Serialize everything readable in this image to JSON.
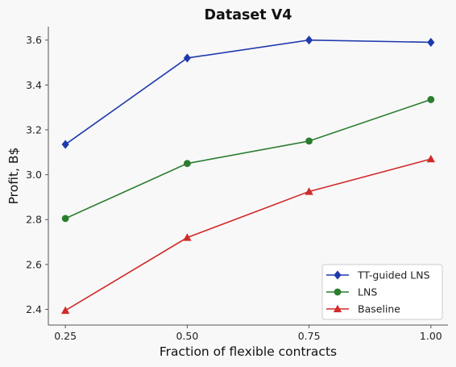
{
  "chart_data": {
    "type": "line",
    "title": "Dataset V4",
    "xlabel": "Fraction of flexible contracts",
    "ylabel": "Profit, B$",
    "x": [
      0.25,
      0.5,
      0.75,
      1.0
    ],
    "xticks": [
      "0.25",
      "0.50",
      "0.75",
      "1.00"
    ],
    "yticks": [
      "2.4",
      "2.6",
      "2.8",
      "3.0",
      "3.2",
      "3.4",
      "3.6"
    ],
    "xlim": [
      0.215,
      1.035
    ],
    "ylim": [
      2.33,
      3.66
    ],
    "grid": false,
    "legend_position": "bottom-right",
    "series": [
      {
        "name": "TT-guided LNS",
        "color": "#1f3aad",
        "marker": "diamond",
        "values": [
          3.135,
          3.52,
          3.6,
          3.59
        ]
      },
      {
        "name": "LNS",
        "color": "#2a7d2e",
        "marker": "circle",
        "values": [
          2.805,
          3.05,
          3.15,
          3.335
        ]
      },
      {
        "name": "Baseline",
        "color": "#d22a2a",
        "marker": "triangle",
        "values": [
          2.395,
          2.72,
          2.925,
          3.07
        ]
      }
    ]
  }
}
